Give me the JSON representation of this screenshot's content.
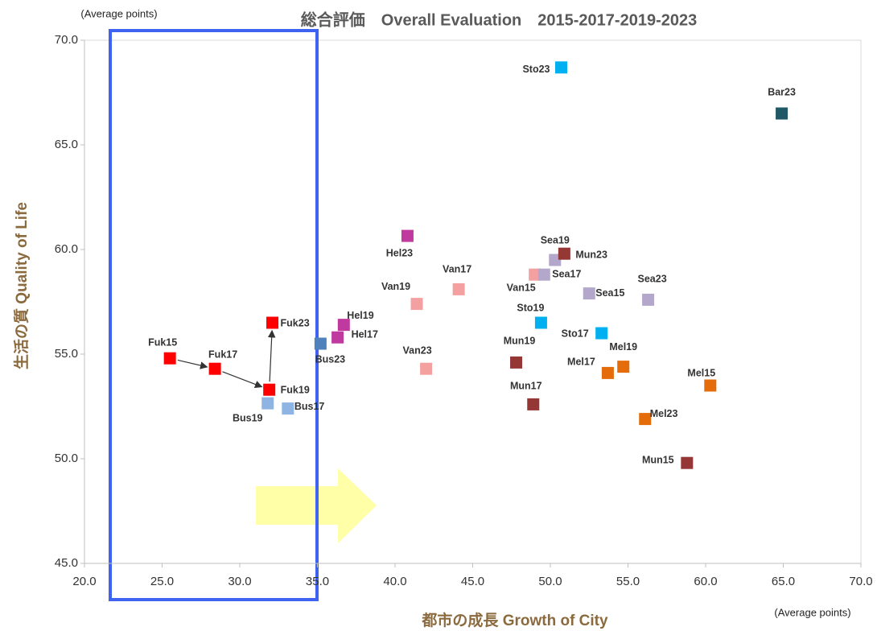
{
  "chart_data": {
    "type": "scatter",
    "title": "総合評価　Overall Evaluation　2015-2017-2019-2023",
    "x_label": "都市の成長 Growth of City",
    "y_label": "生活の質 Quality of Life",
    "annotations": [
      "(Average points)",
      "(Average points)"
    ],
    "xlim": [
      20,
      70
    ],
    "ylim": [
      45,
      70
    ],
    "xticks": [
      {
        "value": 20,
        "label": "20.0"
      },
      {
        "value": 25,
        "label": "25.0"
      },
      {
        "value": 30,
        "label": "30.0"
      },
      {
        "value": 35,
        "label": "35.0"
      },
      {
        "value": 40,
        "label": "40.0"
      },
      {
        "value": 45,
        "label": "45.0"
      },
      {
        "value": 50,
        "label": "50.0"
      },
      {
        "value": 55,
        "label": "55.0"
      },
      {
        "value": 60,
        "label": "60.0"
      },
      {
        "value": 65,
        "label": "65.0"
      },
      {
        "value": 70,
        "label": "70.0"
      }
    ],
    "yticks": [
      {
        "value": 45,
        "label": "45.0"
      },
      {
        "value": 50,
        "label": "50.0"
      },
      {
        "value": 55,
        "label": "55.0"
      },
      {
        "value": 60,
        "label": "60.0"
      },
      {
        "value": 65,
        "label": "65.0"
      },
      {
        "value": 70,
        "label": "70.0"
      }
    ],
    "points": [
      {
        "label": "Sto23",
        "x": 50.7,
        "y": 68.7,
        "color": "#00b0f0"
      },
      {
        "label": "Bar23",
        "x": 64.9,
        "y": 66.5,
        "color": "#215868"
      },
      {
        "label": "Hel23",
        "x": 40.8,
        "y": 60.65,
        "color": "#c0399f"
      },
      {
        "label": "Sea19",
        "x": 50.3,
        "y": 59.5,
        "color": "#b4a7cc"
      },
      {
        "label": "Mun23",
        "x": 50.9,
        "y": 59.8,
        "color": "#953735"
      },
      {
        "label": "Van15",
        "x": 49.0,
        "y": 58.8,
        "color": "#f4a0a0"
      },
      {
        "label": "Sea17",
        "x": 49.6,
        "y": 58.8,
        "color": "#b4a7cc"
      },
      {
        "label": "Van17",
        "x": 44.1,
        "y": 58.1,
        "color": "#f4a0a0"
      },
      {
        "label": "Van19",
        "x": 41.4,
        "y": 57.4,
        "color": "#f4a0a0"
      },
      {
        "label": "Sea15",
        "x": 52.5,
        "y": 57.9,
        "color": "#b4a7cc"
      },
      {
        "label": "Sea23",
        "x": 56.3,
        "y": 57.6,
        "color": "#b4a7cc"
      },
      {
        "label": "Sto19",
        "x": 49.4,
        "y": 56.5,
        "color": "#00b0f0"
      },
      {
        "label": "Sto17",
        "x": 53.3,
        "y": 56.0,
        "color": "#00b0f0"
      },
      {
        "label": "Hel19",
        "x": 36.7,
        "y": 56.4,
        "color": "#c0399f"
      },
      {
        "label": "Hel17",
        "x": 36.3,
        "y": 55.8,
        "color": "#c0399f"
      },
      {
        "label": "Fuk23",
        "x": 32.1,
        "y": 56.5,
        "color": "#ff0000"
      },
      {
        "label": "Bus23",
        "x": 35.2,
        "y": 55.5,
        "color": "#4f81bd"
      },
      {
        "label": "Fuk15",
        "x": 25.5,
        "y": 54.8,
        "color": "#ff0000"
      },
      {
        "label": "Fuk17",
        "x": 28.4,
        "y": 54.3,
        "color": "#ff0000"
      },
      {
        "label": "Fuk19",
        "x": 31.9,
        "y": 53.3,
        "color": "#ff0000"
      },
      {
        "label": "Bus19",
        "x": 31.8,
        "y": 52.65,
        "color": "#8db4e2"
      },
      {
        "label": "Bus17",
        "x": 33.1,
        "y": 52.4,
        "color": "#8db4e2"
      },
      {
        "label": "Van23",
        "x": 42.0,
        "y": 54.3,
        "color": "#f4a0a0"
      },
      {
        "label": "Mun19",
        "x": 47.8,
        "y": 54.6,
        "color": "#953735"
      },
      {
        "label": "Mun17",
        "x": 48.9,
        "y": 52.6,
        "color": "#953735"
      },
      {
        "label": "Mel17",
        "x": 53.7,
        "y": 54.1,
        "color": "#e46c0a"
      },
      {
        "label": "Mel19",
        "x": 54.7,
        "y": 54.4,
        "color": "#e46c0a"
      },
      {
        "label": "Mel15",
        "x": 60.3,
        "y": 53.5,
        "color": "#e46c0a"
      },
      {
        "label": "Mel23",
        "x": 56.1,
        "y": 51.9,
        "color": "#e46c0a"
      },
      {
        "label": "Mun15",
        "x": 58.8,
        "y": 49.8,
        "color": "#953735"
      }
    ]
  }
}
